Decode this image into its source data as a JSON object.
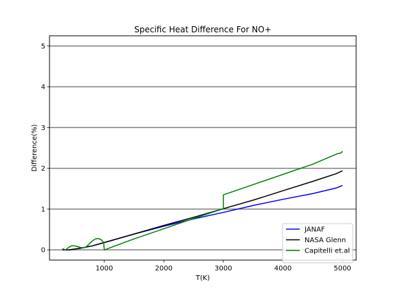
{
  "chart_data": {
    "type": "line",
    "title": "Specific Heat Difference For NO+",
    "xlabel": "T(K)",
    "ylabel": "Difference(%)",
    "xlim": [
      80,
      5230
    ],
    "ylim": [
      -0.25,
      5.25
    ],
    "xticks": [
      1000,
      2000,
      3000,
      4000,
      5000
    ],
    "yticks": [
      0,
      1,
      2,
      3,
      4,
      5
    ],
    "grid": "horizontal lines at y ticks",
    "legend_position": "lower-right",
    "series": [
      {
        "name": "JANAF",
        "color": "#0000ff",
        "x": [
          298,
          400,
          500,
          600,
          700,
          800,
          900,
          1000,
          1500,
          2000,
          2500,
          3000,
          3500,
          4000,
          4500,
          4900,
          5000
        ],
        "y": [
          0.0,
          0.0,
          0.02,
          0.04,
          0.07,
          0.1,
          0.14,
          0.18,
          0.39,
          0.58,
          0.76,
          0.92,
          1.09,
          1.24,
          1.38,
          1.52,
          1.58
        ]
      },
      {
        "name": "NASA Glenn",
        "color": "#000000",
        "x": [
          298,
          400,
          500,
          600,
          700,
          800,
          900,
          1000,
          1500,
          2000,
          2500,
          3000,
          3500,
          4000,
          4500,
          4900,
          5000
        ],
        "y": [
          0.0,
          0.0,
          0.02,
          0.04,
          0.07,
          0.1,
          0.14,
          0.18,
          0.39,
          0.6,
          0.8,
          1.01,
          1.22,
          1.45,
          1.68,
          1.87,
          1.94
        ]
      },
      {
        "name": "Capitelli et.al",
        "color": "#008000",
        "x": [
          298,
          350,
          400,
          450,
          500,
          550,
          600,
          650,
          700,
          750,
          800,
          850,
          900,
          950,
          990,
          1000,
          1500,
          2000,
          2500,
          3000,
          3000,
          3500,
          4000,
          4500,
          4900,
          4980,
          5000
        ],
        "y": [
          0.03,
          0.0,
          0.06,
          0.1,
          0.1,
          0.08,
          0.06,
          0.05,
          0.08,
          0.15,
          0.22,
          0.27,
          0.28,
          0.25,
          0.18,
          0.0,
          0.27,
          0.52,
          0.77,
          1.01,
          1.35,
          1.6,
          1.85,
          2.1,
          2.35,
          2.38,
          2.42
        ]
      }
    ]
  }
}
